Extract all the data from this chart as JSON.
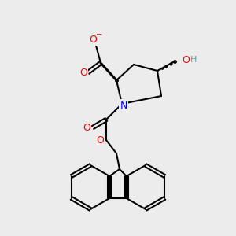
{
  "bg_color": "#ececec",
  "bond_color": "#000000",
  "bond_lw": 1.5,
  "atom_colors": {
    "O": "#ff0000",
    "N": "#0000ff",
    "O-": "#ff0000",
    "H_gray": "#5f9ea0"
  },
  "font_size_atom": 9,
  "font_size_minus": 7
}
